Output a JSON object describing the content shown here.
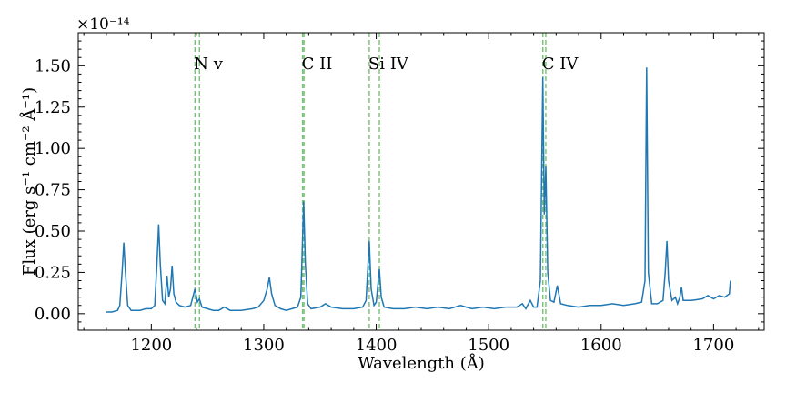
{
  "chart_data": {
    "type": "line",
    "xlabel": "Wavelength (Å)",
    "ylabel": "Flux (erg s⁻¹ cm⁻² Å⁻¹)",
    "y_offset_label": "×10⁻¹⁴",
    "xlim": [
      1135,
      1745
    ],
    "ylim": [
      -0.1,
      1.7
    ],
    "x_ticks": [
      1200,
      1300,
      1400,
      1500,
      1600,
      1700
    ],
    "x_tick_labels": [
      "1200",
      "1300",
      "1400",
      "1500",
      "1600",
      "1700"
    ],
    "y_ticks": [
      0.0,
      0.25,
      0.5,
      0.75,
      1.0,
      1.25,
      1.5
    ],
    "y_tick_labels": [
      "0.00",
      "0.25",
      "0.50",
      "0.75",
      "1.00",
      "1.25",
      "1.50"
    ],
    "grid": false,
    "series_color": "#1f77b4",
    "reference_line_color": "#2ca02c",
    "reference_lines": [
      {
        "label": "N v",
        "x": [
          1238.8,
          1242.8
        ]
      },
      {
        "label": "C II",
        "x": [
          1334.5,
          1335.7
        ]
      },
      {
        "label": "Si IV",
        "x": [
          1393.8,
          1402.8
        ]
      },
      {
        "label": "C IV",
        "x": [
          1548.2,
          1550.8
        ]
      }
    ],
    "series": [
      {
        "points": [
          [
            1160,
            0.01
          ],
          [
            1165,
            0.01
          ],
          [
            1170,
            0.02
          ],
          [
            1172,
            0.05
          ],
          [
            1174,
            0.25
          ],
          [
            1175.5,
            0.43
          ],
          [
            1177,
            0.25
          ],
          [
            1179,
            0.05
          ],
          [
            1182,
            0.02
          ],
          [
            1190,
            0.02
          ],
          [
            1195,
            0.03
          ],
          [
            1200,
            0.03
          ],
          [
            1203,
            0.05
          ],
          [
            1205,
            0.3
          ],
          [
            1206.5,
            0.54
          ],
          [
            1208,
            0.3
          ],
          [
            1210,
            0.08
          ],
          [
            1212,
            0.06
          ],
          [
            1214,
            0.23
          ],
          [
            1215.5,
            0.1
          ],
          [
            1217,
            0.15
          ],
          [
            1218.5,
            0.29
          ],
          [
            1220,
            0.12
          ],
          [
            1222,
            0.07
          ],
          [
            1225,
            0.05
          ],
          [
            1230,
            0.04
          ],
          [
            1235,
            0.05
          ],
          [
            1238.8,
            0.15
          ],
          [
            1241,
            0.07
          ],
          [
            1242.8,
            0.09
          ],
          [
            1245,
            0.04
          ],
          [
            1250,
            0.03
          ],
          [
            1255,
            0.02
          ],
          [
            1260,
            0.02
          ],
          [
            1265,
            0.04
          ],
          [
            1270,
            0.02
          ],
          [
            1280,
            0.02
          ],
          [
            1290,
            0.03
          ],
          [
            1295,
            0.04
          ],
          [
            1300,
            0.08
          ],
          [
            1303,
            0.15
          ],
          [
            1305,
            0.22
          ],
          [
            1307,
            0.12
          ],
          [
            1310,
            0.05
          ],
          [
            1315,
            0.03
          ],
          [
            1320,
            0.02
          ],
          [
            1325,
            0.03
          ],
          [
            1330,
            0.04
          ],
          [
            1333,
            0.1
          ],
          [
            1334.5,
            0.45
          ],
          [
            1335.5,
            0.68
          ],
          [
            1337,
            0.3
          ],
          [
            1339,
            0.06
          ],
          [
            1342,
            0.03
          ],
          [
            1350,
            0.04
          ],
          [
            1355,
            0.06
          ],
          [
            1360,
            0.04
          ],
          [
            1370,
            0.03
          ],
          [
            1380,
            0.03
          ],
          [
            1388,
            0.04
          ],
          [
            1391,
            0.08
          ],
          [
            1393.8,
            0.44
          ],
          [
            1395.5,
            0.15
          ],
          [
            1398,
            0.05
          ],
          [
            1400,
            0.07
          ],
          [
            1402.8,
            0.27
          ],
          [
            1404.5,
            0.1
          ],
          [
            1407,
            0.04
          ],
          [
            1415,
            0.03
          ],
          [
            1425,
            0.03
          ],
          [
            1435,
            0.04
          ],
          [
            1445,
            0.03
          ],
          [
            1455,
            0.04
          ],
          [
            1465,
            0.03
          ],
          [
            1475,
            0.05
          ],
          [
            1485,
            0.03
          ],
          [
            1495,
            0.04
          ],
          [
            1505,
            0.03
          ],
          [
            1515,
            0.04
          ],
          [
            1525,
            0.04
          ],
          [
            1530,
            0.06
          ],
          [
            1533,
            0.03
          ],
          [
            1537,
            0.08
          ],
          [
            1540,
            0.04
          ],
          [
            1543,
            0.04
          ],
          [
            1546,
            0.2
          ],
          [
            1548.2,
            1.43
          ],
          [
            1549.5,
            0.6
          ],
          [
            1550.8,
            0.89
          ],
          [
            1552.5,
            0.25
          ],
          [
            1555,
            0.08
          ],
          [
            1558,
            0.07
          ],
          [
            1561,
            0.17
          ],
          [
            1564,
            0.06
          ],
          [
            1570,
            0.05
          ],
          [
            1580,
            0.04
          ],
          [
            1590,
            0.05
          ],
          [
            1600,
            0.05
          ],
          [
            1610,
            0.06
          ],
          [
            1620,
            0.05
          ],
          [
            1630,
            0.06
          ],
          [
            1636,
            0.07
          ],
          [
            1639,
            0.2
          ],
          [
            1640.5,
            1.49
          ],
          [
            1642,
            0.25
          ],
          [
            1645,
            0.06
          ],
          [
            1650,
            0.06
          ],
          [
            1655,
            0.08
          ],
          [
            1657,
            0.25
          ],
          [
            1658.5,
            0.44
          ],
          [
            1660,
            0.2
          ],
          [
            1663,
            0.08
          ],
          [
            1666,
            0.1
          ],
          [
            1668,
            0.06
          ],
          [
            1670,
            0.1
          ],
          [
            1671.5,
            0.16
          ],
          [
            1673,
            0.08
          ],
          [
            1680,
            0.08
          ],
          [
            1690,
            0.09
          ],
          [
            1695,
            0.11
          ],
          [
            1700,
            0.09
          ],
          [
            1705,
            0.11
          ],
          [
            1710,
            0.1
          ],
          [
            1714,
            0.12
          ],
          [
            1715,
            0.2
          ]
        ]
      }
    ]
  }
}
